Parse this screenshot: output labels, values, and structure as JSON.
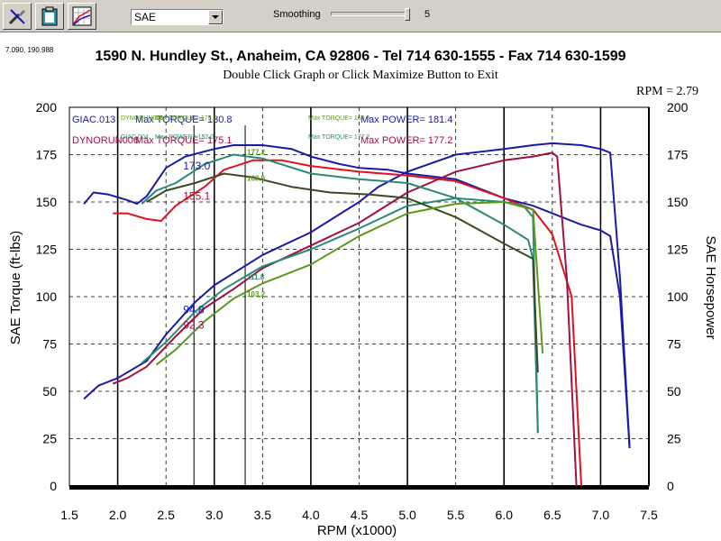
{
  "toolbar": {
    "buttons": [
      "tools-icon",
      "clipboard-icon",
      "chart-settings-icon"
    ],
    "correction_select": "SAE",
    "smoothing_label": "Smoothing",
    "smoothing_value": "5",
    "smoothing_level": 1.0
  },
  "chart_data": {
    "type": "line",
    "coordinate_readout": "7.090, 190.988",
    "header_line": "1590 N. Hundley St., Anaheim, CA 92806 - Tel 714 630-1555 - Fax 714 630-1599",
    "subtitle": "Double Click Graph or Click Maximize Button to Exit",
    "cursor_readout": "RPM = 2.79",
    "xlabel": "RPM (x1000)",
    "ylabel_left": "SAE Torque (ft-lbs)",
    "ylabel_right": "SAE Horsepower",
    "xlim": [
      1.5,
      7.5
    ],
    "ylim": [
      0,
      200
    ],
    "x_ticks": [
      "1.5",
      "2.0",
      "2.5",
      "3.0",
      "3.5",
      "4.0",
      "4.5",
      "5.0",
      "5.5",
      "6.0",
      "6.5",
      "7.0",
      "7.5"
    ],
    "y_ticks": [
      "0",
      "25",
      "50",
      "75",
      "100",
      "125",
      "150",
      "175",
      "200"
    ],
    "colors": {
      "blue": "#1a1aa8",
      "red": "#e01020",
      "maroon": "#a01040",
      "teal": "#2a8a78",
      "olive": "#5a9a1a",
      "darkgreen": "#3a4a22"
    },
    "legend": [
      {
        "name": "GIAC.013",
        "text": "Max TORQUE= 180.8",
        "power_text": "Max POWER= 181.4",
        "color": "blue"
      },
      {
        "name": "DYNORUN006",
        "text": "Max TORQUE= 175.1",
        "power_text": "Max POWER= 177.2",
        "color": "maroon"
      },
      {
        "name": "DYNORUN006",
        "text": "Max TORQUE= 175.1",
        "power_text": "Max TORQUE= 165.5",
        "color": "olive"
      },
      {
        "name": "GIAC.004",
        "text": "Max POWER= 152.0",
        "power_text": "Max TORQUE= 177.2",
        "color": "teal"
      }
    ],
    "cursor_labels": [
      {
        "text": "173.0",
        "x": 2.79,
        "y": 169,
        "color": "blue"
      },
      {
        "text": "155.1",
        "x": 2.79,
        "y": 153,
        "color": "maroon"
      },
      {
        "text": "94.8",
        "x": 2.79,
        "y": 93,
        "color": "blue"
      },
      {
        "text": "92.3",
        "x": 2.79,
        "y": 85,
        "color": "maroon"
      },
      {
        "text": "177.2",
        "x": 3.32,
        "y": 177,
        "color": "olive"
      },
      {
        "text": "163.9",
        "x": 3.32,
        "y": 163,
        "color": "olive"
      },
      {
        "text": "111.8",
        "x": 3.32,
        "y": 111,
        "color": "teal"
      },
      {
        "text": "103.2",
        "x": 3.32,
        "y": 102,
        "color": "olive"
      }
    ],
    "series": [
      {
        "name": "GIAC.013 torque",
        "color": "blue",
        "points": [
          [
            1.65,
            149
          ],
          [
            1.75,
            155
          ],
          [
            1.9,
            154
          ],
          [
            2.1,
            151
          ],
          [
            2.2,
            149
          ],
          [
            2.3,
            153
          ],
          [
            2.5,
            168
          ],
          [
            2.7,
            174
          ],
          [
            3.0,
            178
          ],
          [
            3.2,
            180
          ],
          [
            3.5,
            180
          ],
          [
            3.8,
            178
          ],
          [
            4.0,
            174
          ],
          [
            4.3,
            170
          ],
          [
            4.5,
            168
          ],
          [
            4.8,
            167
          ],
          [
            5.0,
            165
          ],
          [
            5.5,
            162
          ],
          [
            6.0,
            152
          ],
          [
            6.3,
            148
          ],
          [
            6.5,
            144
          ],
          [
            6.8,
            138
          ],
          [
            7.0,
            135
          ],
          [
            7.1,
            132
          ],
          [
            7.2,
            100
          ],
          [
            7.3,
            20
          ]
        ]
      },
      {
        "name": "GIAC.013 power",
        "color": "blue",
        "points": [
          [
            1.65,
            46
          ],
          [
            1.8,
            53
          ],
          [
            2.0,
            57
          ],
          [
            2.3,
            66
          ],
          [
            2.5,
            80
          ],
          [
            2.8,
            97
          ],
          [
            3.0,
            106
          ],
          [
            3.5,
            122
          ],
          [
            4.0,
            134
          ],
          [
            4.5,
            150
          ],
          [
            4.7,
            158
          ],
          [
            5.0,
            166
          ],
          [
            5.5,
            175
          ],
          [
            6.0,
            178
          ],
          [
            6.3,
            180
          ],
          [
            6.5,
            181
          ],
          [
            6.8,
            180
          ],
          [
            7.0,
            178
          ],
          [
            7.1,
            176
          ],
          [
            7.2,
            110
          ],
          [
            7.3,
            20
          ]
        ]
      },
      {
        "name": "DYNORUN006 torque",
        "color": "red",
        "points": [
          [
            1.95,
            144
          ],
          [
            2.1,
            144
          ],
          [
            2.3,
            141
          ],
          [
            2.45,
            140
          ],
          [
            2.6,
            148
          ],
          [
            2.9,
            158
          ],
          [
            3.1,
            167
          ],
          [
            3.4,
            172
          ],
          [
            3.7,
            172
          ],
          [
            4.0,
            169
          ],
          [
            4.5,
            166
          ],
          [
            5.0,
            164
          ],
          [
            5.5,
            161
          ],
          [
            6.0,
            152
          ],
          [
            6.3,
            146
          ],
          [
            6.5,
            133
          ],
          [
            6.7,
            100
          ],
          [
            6.8,
            0
          ]
        ]
      },
      {
        "name": "DYNORUN006 power",
        "color": "maroon",
        "points": [
          [
            1.95,
            54
          ],
          [
            2.1,
            57
          ],
          [
            2.3,
            63
          ],
          [
            2.6,
            79
          ],
          [
            2.9,
            94
          ],
          [
            3.2,
            104
          ],
          [
            3.5,
            115
          ],
          [
            4.0,
            127
          ],
          [
            4.5,
            139
          ],
          [
            5.0,
            155
          ],
          [
            5.5,
            166
          ],
          [
            6.0,
            172
          ],
          [
            6.3,
            174
          ],
          [
            6.5,
            176
          ],
          [
            6.55,
            174
          ],
          [
            6.65,
            110
          ],
          [
            6.75,
            0
          ]
        ]
      },
      {
        "name": "GIAC.004 torque",
        "color": "teal",
        "points": [
          [
            2.25,
            149
          ],
          [
            2.4,
            156
          ],
          [
            2.6,
            160
          ],
          [
            2.9,
            170
          ],
          [
            3.2,
            175
          ],
          [
            3.5,
            173
          ],
          [
            4.0,
            165
          ],
          [
            4.5,
            162
          ],
          [
            5.0,
            160
          ],
          [
            5.5,
            152
          ],
          [
            6.0,
            138
          ],
          [
            6.25,
            130
          ],
          [
            6.3,
            120
          ],
          [
            6.35,
            28
          ]
        ]
      },
      {
        "name": "GIAC.004 power",
        "color": "teal",
        "points": [
          [
            2.25,
            65
          ],
          [
            2.5,
            76
          ],
          [
            2.8,
            92
          ],
          [
            3.1,
            104
          ],
          [
            3.5,
            116
          ],
          [
            4.0,
            125
          ],
          [
            4.5,
            136
          ],
          [
            5.0,
            148
          ],
          [
            5.5,
            152
          ],
          [
            6.0,
            150
          ],
          [
            6.2,
            148
          ],
          [
            6.3,
            142
          ],
          [
            6.35,
            28
          ]
        ]
      },
      {
        "name": "dark torque",
        "color": "darkgreen",
        "points": [
          [
            2.3,
            150
          ],
          [
            2.5,
            156
          ],
          [
            2.8,
            160
          ],
          [
            3.1,
            165
          ],
          [
            3.4,
            163
          ],
          [
            3.8,
            158
          ],
          [
            4.2,
            155
          ],
          [
            4.6,
            154
          ],
          [
            5.0,
            152
          ],
          [
            5.5,
            142
          ],
          [
            6.0,
            128
          ],
          [
            6.3,
            120
          ],
          [
            6.35,
            60
          ]
        ]
      },
      {
        "name": "olive power",
        "color": "olive",
        "points": [
          [
            2.4,
            64
          ],
          [
            2.6,
            72
          ],
          [
            2.9,
            87
          ],
          [
            3.2,
            99
          ],
          [
            3.5,
            107
          ],
          [
            4.0,
            117
          ],
          [
            4.5,
            132
          ],
          [
            5.0,
            144
          ],
          [
            5.5,
            149
          ],
          [
            6.0,
            150
          ],
          [
            6.3,
            146
          ],
          [
            6.4,
            70
          ]
        ]
      }
    ]
  }
}
